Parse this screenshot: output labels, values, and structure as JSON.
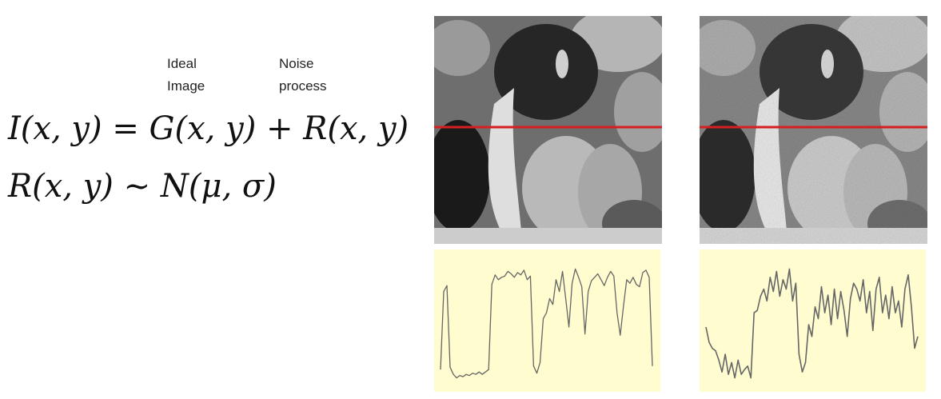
{
  "labels": {
    "ideal": [
      "Ideal",
      "Image"
    ],
    "noise": [
      "Noise",
      "process"
    ]
  },
  "equations": {
    "line1": "I(x, y) = G(x, y) + R(x, y)",
    "line2": "R(x, y) ~ N(μ, σ)"
  },
  "colors": {
    "scanline": "#d42020",
    "plot_background": "#fffdd0",
    "profile_line": "#666666"
  },
  "panels": [
    {
      "name": "clean-peppers-image",
      "noisy": false
    },
    {
      "name": "noisy-peppers-image",
      "noisy": true
    }
  ],
  "chart_data": [
    {
      "type": "line",
      "series": [
        {
          "values": [
            0.12,
            0.78,
            0.83,
            0.14,
            0.08,
            0.05,
            0.07,
            0.06,
            0.08,
            0.07,
            0.09,
            0.08,
            0.1,
            0.08,
            0.1,
            0.12,
            0.84,
            0.92,
            0.88,
            0.9,
            0.91,
            0.95,
            0.93,
            0.9,
            0.94,
            0.92,
            0.96,
            0.88,
            0.91,
            0.15,
            0.09,
            0.18,
            0.55,
            0.6,
            0.72,
            0.67,
            0.88,
            0.78,
            0.95,
            0.72,
            0.48,
            0.85,
            0.97,
            0.9,
            0.82,
            0.42,
            0.78,
            0.87,
            0.9,
            0.93,
            0.88,
            0.83,
            0.9,
            0.95,
            0.91,
            0.6,
            0.41,
            0.66,
            0.88,
            0.85,
            0.9,
            0.84,
            0.82,
            0.94,
            0.96,
            0.9,
            0.15
          ]
        }
      ]
    },
    {
      "type": "line",
      "series": [
        {
          "values": [
            0.48,
            0.35,
            0.3,
            0.28,
            0.2,
            0.1,
            0.25,
            0.08,
            0.18,
            0.05,
            0.2,
            0.08,
            0.12,
            0.15,
            0.05,
            0.6,
            0.62,
            0.74,
            0.8,
            0.7,
            0.9,
            0.78,
            0.95,
            0.74,
            0.88,
            0.8,
            0.97,
            0.7,
            0.85,
            0.25,
            0.1,
            0.18,
            0.5,
            0.4,
            0.65,
            0.55,
            0.82,
            0.6,
            0.75,
            0.5,
            0.8,
            0.55,
            0.78,
            0.62,
            0.4,
            0.72,
            0.85,
            0.8,
            0.7,
            0.88,
            0.6,
            0.78,
            0.45,
            0.8,
            0.9,
            0.6,
            0.75,
            0.55,
            0.82,
            0.6,
            0.7,
            0.48,
            0.8,
            0.92,
            0.65,
            0.3,
            0.4
          ]
        }
      ]
    }
  ]
}
